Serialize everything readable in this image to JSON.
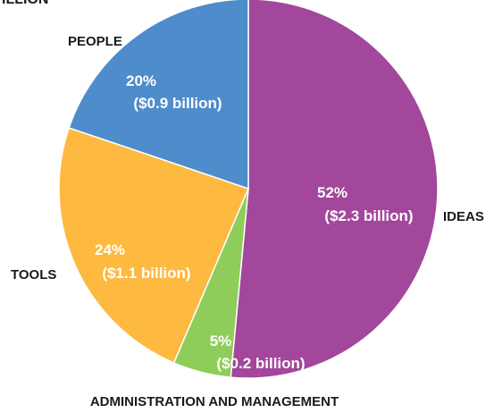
{
  "chart_data": {
    "type": "pie",
    "title": "",
    "slices": [
      {
        "category": "IDEAS",
        "value": 52,
        "amount": 2.3,
        "percent_label": "52%",
        "amount_label": "($2.3 billion)",
        "color": "#a2479b"
      },
      {
        "category": "ADMINISTRATION AND MANAGEMENT",
        "value": 5,
        "amount": 0.2,
        "percent_label": "5%",
        "amount_label": "($0.2 billion)",
        "color": "#8fcd5b"
      },
      {
        "category": "TOOLS",
        "value": 24,
        "amount": 1.1,
        "percent_label": "24%",
        "amount_label": "($1.1 billion)",
        "color": "#fdb940"
      },
      {
        "category": "PEOPLE",
        "value": 20,
        "amount": 0.9,
        "percent_label": "20%",
        "amount_label": "($0.9 billion)",
        "color": "#4e8ccb"
      }
    ],
    "legend": "none",
    "start": "12 o'clock",
    "direction": "clockwise"
  }
}
